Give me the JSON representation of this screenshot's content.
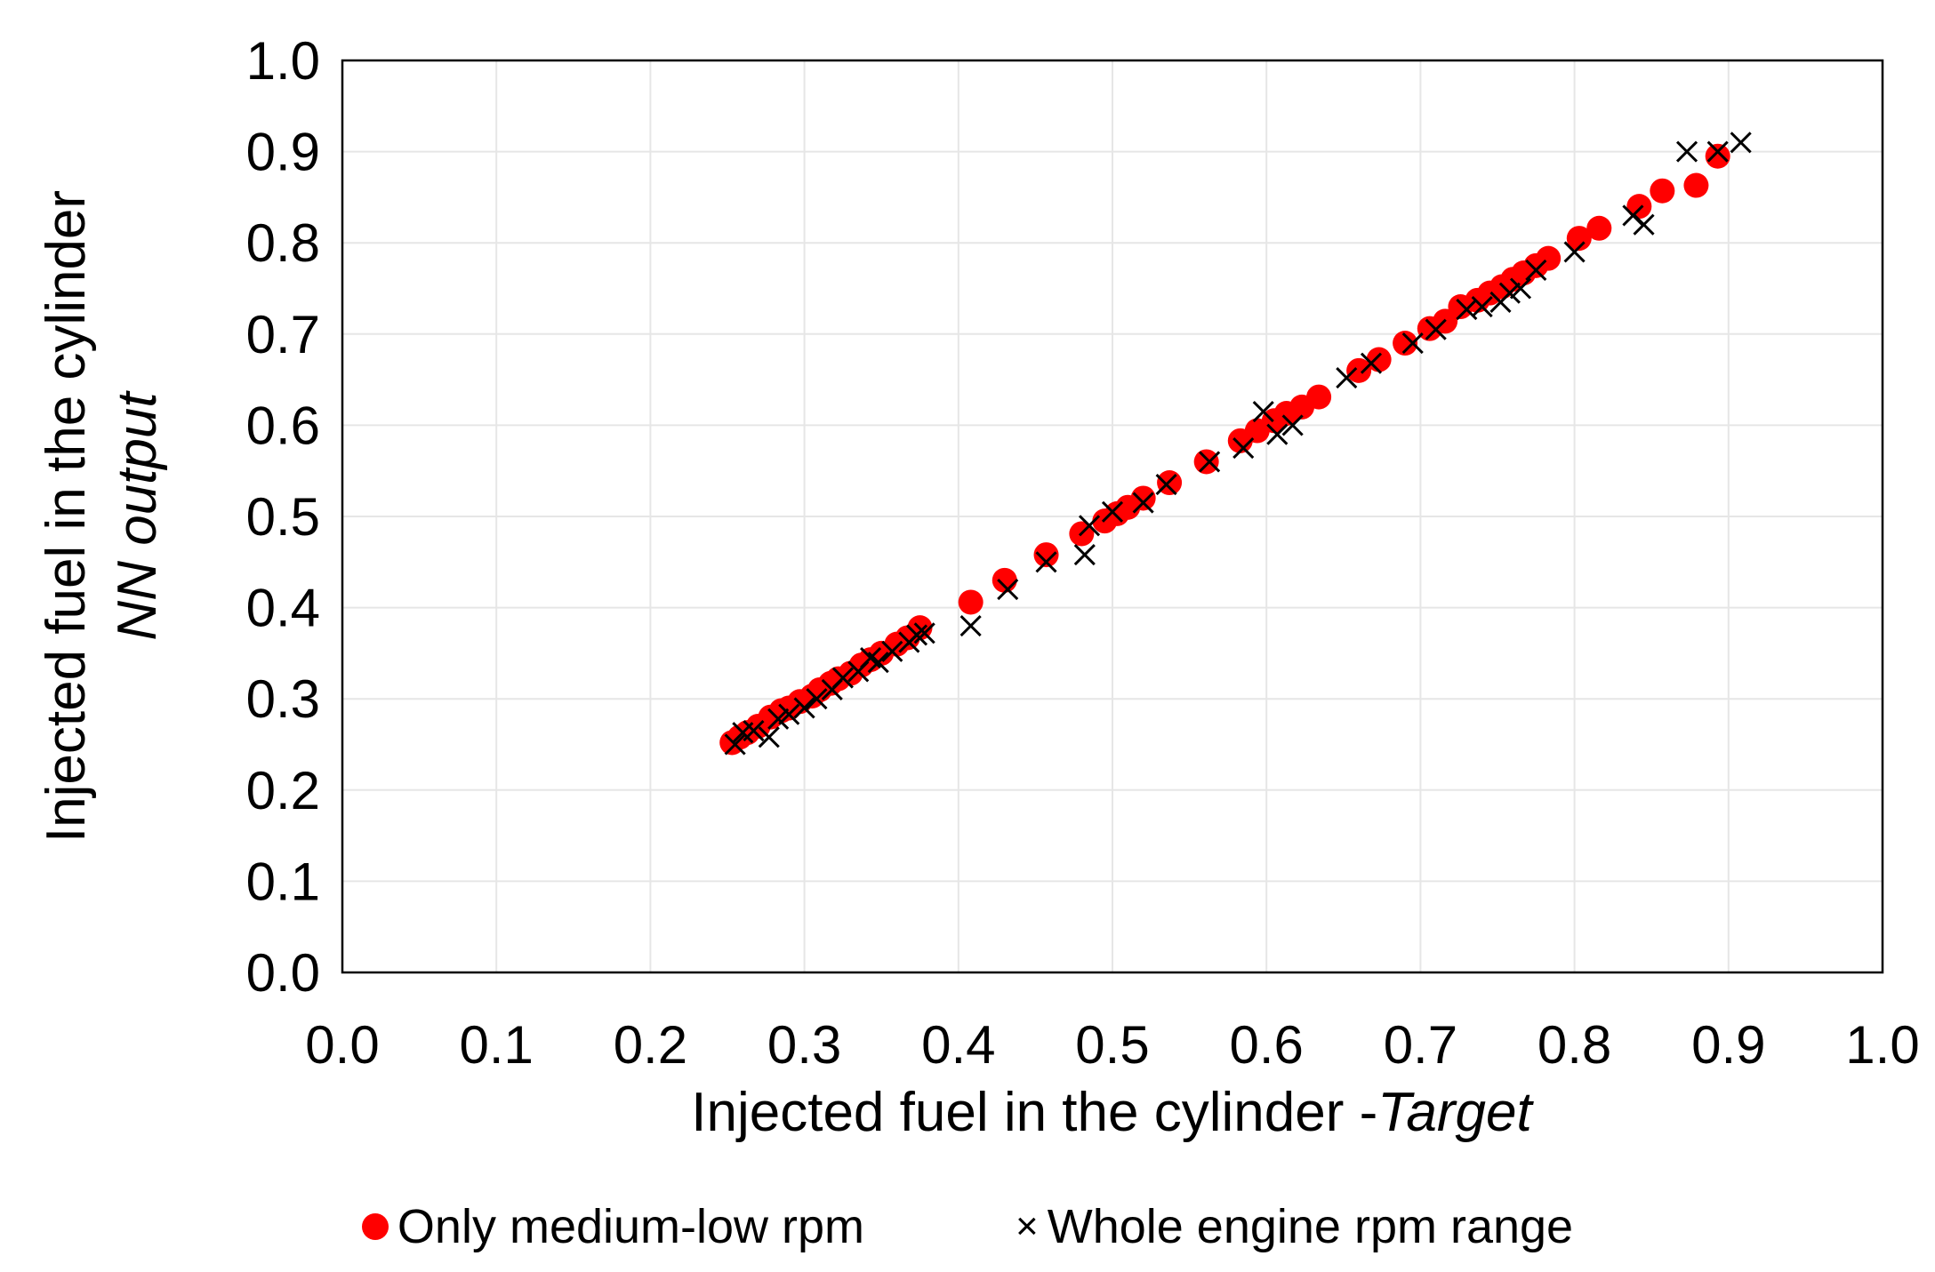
{
  "chart_data": {
    "type": "scatter",
    "xlabel": "Injected fuel in the cylinder -",
    "xlabel_italic": "Target",
    "ylabel_line1": "Injected fuel in the cylinder",
    "ylabel_line2": "NN output",
    "xlim": [
      0.0,
      1.0
    ],
    "ylim": [
      0.0,
      1.0
    ],
    "x_ticks": [
      "0.0",
      "0.1",
      "0.2",
      "0.3",
      "0.4",
      "0.5",
      "0.6",
      "0.7",
      "0.8",
      "0.9",
      "1.0"
    ],
    "y_ticks": [
      "0.0",
      "0.1",
      "0.2",
      "0.3",
      "0.4",
      "0.5",
      "0.6",
      "0.7",
      "0.8",
      "0.9",
      "1.0"
    ],
    "grid": true,
    "legend_position": "bottom",
    "series": [
      {
        "name": "Only medium-low rpm",
        "marker": "circle",
        "color": "#ff0000",
        "points": [
          [
            0.253,
            0.252
          ],
          [
            0.258,
            0.258
          ],
          [
            0.263,
            0.263
          ],
          [
            0.27,
            0.27
          ],
          [
            0.278,
            0.28
          ],
          [
            0.285,
            0.287
          ],
          [
            0.29,
            0.29
          ],
          [
            0.297,
            0.297
          ],
          [
            0.305,
            0.303
          ],
          [
            0.31,
            0.31
          ],
          [
            0.317,
            0.317
          ],
          [
            0.322,
            0.322
          ],
          [
            0.33,
            0.328
          ],
          [
            0.337,
            0.337
          ],
          [
            0.343,
            0.343
          ],
          [
            0.35,
            0.35
          ],
          [
            0.36,
            0.36
          ],
          [
            0.367,
            0.367
          ],
          [
            0.375,
            0.378
          ],
          [
            0.408,
            0.406
          ],
          [
            0.43,
            0.43
          ],
          [
            0.457,
            0.458
          ],
          [
            0.48,
            0.481
          ],
          [
            0.495,
            0.495
          ],
          [
            0.503,
            0.503
          ],
          [
            0.51,
            0.51
          ],
          [
            0.52,
            0.52
          ],
          [
            0.537,
            0.537
          ],
          [
            0.561,
            0.56
          ],
          [
            0.583,
            0.583
          ],
          [
            0.594,
            0.594
          ],
          [
            0.605,
            0.605
          ],
          [
            0.613,
            0.613
          ],
          [
            0.623,
            0.62
          ],
          [
            0.634,
            0.631
          ],
          [
            0.66,
            0.66
          ],
          [
            0.673,
            0.672
          ],
          [
            0.69,
            0.69
          ],
          [
            0.706,
            0.706
          ],
          [
            0.716,
            0.714
          ],
          [
            0.726,
            0.73
          ],
          [
            0.737,
            0.737
          ],
          [
            0.745,
            0.745
          ],
          [
            0.753,
            0.752
          ],
          [
            0.76,
            0.76
          ],
          [
            0.767,
            0.767
          ],
          [
            0.775,
            0.775
          ],
          [
            0.783,
            0.783
          ],
          [
            0.803,
            0.805
          ],
          [
            0.816,
            0.816
          ],
          [
            0.842,
            0.84
          ],
          [
            0.857,
            0.857
          ],
          [
            0.879,
            0.863
          ],
          [
            0.893,
            0.895
          ]
        ]
      },
      {
        "name": "Whole engine rpm range",
        "marker": "x",
        "color": "#000000",
        "points": [
          [
            0.255,
            0.25
          ],
          [
            0.26,
            0.263
          ],
          [
            0.267,
            0.265
          ],
          [
            0.277,
            0.258
          ],
          [
            0.283,
            0.278
          ],
          [
            0.29,
            0.283
          ],
          [
            0.3,
            0.29
          ],
          [
            0.308,
            0.3
          ],
          [
            0.318,
            0.31
          ],
          [
            0.325,
            0.323
          ],
          [
            0.335,
            0.33
          ],
          [
            0.343,
            0.345
          ],
          [
            0.348,
            0.34
          ],
          [
            0.357,
            0.352
          ],
          [
            0.368,
            0.362
          ],
          [
            0.373,
            0.37
          ],
          [
            0.378,
            0.372
          ],
          [
            0.408,
            0.38
          ],
          [
            0.432,
            0.42
          ],
          [
            0.457,
            0.45
          ],
          [
            0.482,
            0.458
          ],
          [
            0.485,
            0.49
          ],
          [
            0.5,
            0.505
          ],
          [
            0.52,
            0.515
          ],
          [
            0.535,
            0.535
          ],
          [
            0.563,
            0.56
          ],
          [
            0.585,
            0.575
          ],
          [
            0.598,
            0.615
          ],
          [
            0.607,
            0.59
          ],
          [
            0.617,
            0.6
          ],
          [
            0.652,
            0.652
          ],
          [
            0.668,
            0.668
          ],
          [
            0.695,
            0.69
          ],
          [
            0.71,
            0.705
          ],
          [
            0.73,
            0.727
          ],
          [
            0.74,
            0.73
          ],
          [
            0.752,
            0.735
          ],
          [
            0.758,
            0.745
          ],
          [
            0.765,
            0.75
          ],
          [
            0.775,
            0.77
          ],
          [
            0.8,
            0.79
          ],
          [
            0.838,
            0.83
          ],
          [
            0.845,
            0.82
          ],
          [
            0.873,
            0.9
          ],
          [
            0.893,
            0.9
          ],
          [
            0.908,
            0.91
          ]
        ]
      }
    ]
  }
}
